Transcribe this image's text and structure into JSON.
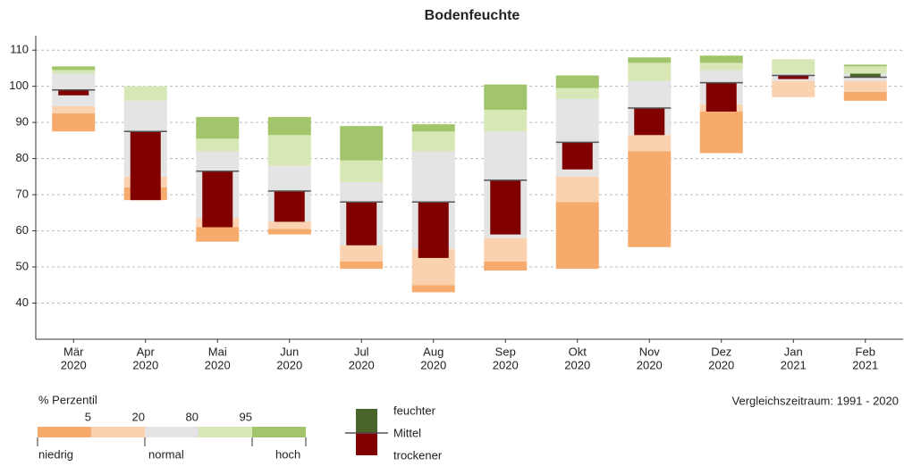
{
  "chart_data": {
    "type": "percentile-range",
    "title": "Bodenfeuchte",
    "categories": [
      "Mär",
      "Apr",
      "Mai",
      "Jun",
      "Jul",
      "Aug",
      "Sep",
      "Okt",
      "Nov",
      "Dez",
      "Jan",
      "Feb"
    ],
    "category_years": [
      "2020",
      "2020",
      "2020",
      "2020",
      "2020",
      "2020",
      "2020",
      "2020",
      "2020",
      "2020",
      "2021",
      "2021"
    ],
    "min": [
      87.5,
      68.5,
      57,
      59,
      49.5,
      43,
      49,
      49.5,
      55.5,
      81.5,
      97,
      96
    ],
    "p5": [
      92.5,
      72,
      61,
      60.5,
      51.5,
      45,
      51.5,
      68,
      82,
      93,
      97,
      98.5
    ],
    "p20": [
      94.5,
      75,
      63.5,
      62.5,
      56,
      55,
      58,
      75,
      86.5,
      95,
      101.5,
      101.5
    ],
    "p80": [
      103.5,
      96,
      82,
      78,
      73.5,
      82,
      87.5,
      96.5,
      101.5,
      104.5,
      103.5,
      103.5
    ],
    "p95": [
      104.5,
      100,
      85.5,
      86.5,
      79.5,
      87.5,
      93.5,
      99.5,
      106.5,
      106.5,
      107.5,
      105.5
    ],
    "max": [
      105.5,
      100,
      91.5,
      91.5,
      89,
      89.5,
      100.5,
      103,
      108,
      108.5,
      107.5,
      106
    ],
    "mean": [
      99,
      87.5,
      76.5,
      71,
      68,
      68,
      74,
      84.5,
      94,
      101,
      103,
      102.5
    ],
    "current": [
      97.5,
      68.5,
      61,
      62.5,
      56,
      52.5,
      59,
      77,
      86.5,
      93,
      102,
      103.5
    ],
    "band_colors": [
      "#f6ab6c",
      "#fbd2af",
      "#e4e4e4",
      "#d8e7b6",
      "#a2c46a"
    ],
    "wet_color": "#4a6529",
    "dry_color": "#800000",
    "mean_color": "#555555",
    "ylim": [
      30,
      114
    ],
    "yticks": [
      40,
      50,
      60,
      70,
      80,
      90,
      100,
      110
    ],
    "grid": true,
    "percentile_legend": {
      "title": "% Perzentil",
      "ticks": [
        5,
        20,
        80,
        95
      ],
      "labels": [
        "niedrig",
        "normal",
        "hoch"
      ]
    },
    "mean_legend": {
      "wet": "feuchter",
      "mean": "Mittel",
      "dry": "trockener"
    },
    "note": "Vergleichszeitraum: 1991 - 2020"
  }
}
